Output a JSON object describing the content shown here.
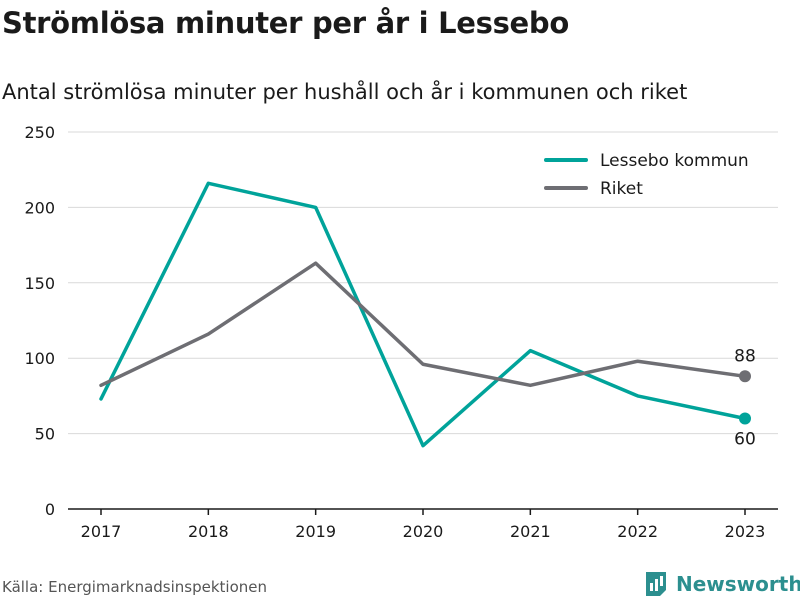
{
  "title": "Strömlösa minuter per år i Lessebo",
  "subtitle": "Antal strömlösa minuter per hushåll och år i kommunen och riket",
  "source": "Källa: Energimarknadsinspektionen",
  "brand": {
    "name": "Newsworthy",
    "icon": "newsworthy-logo-icon",
    "color": "#2c8f8f"
  },
  "chart_data": {
    "type": "line",
    "categories": [
      "2017",
      "2018",
      "2019",
      "2020",
      "2021",
      "2022",
      "2023"
    ],
    "series": [
      {
        "name": "Lessebo kommun",
        "color": "#00a39a",
        "values": [
          73,
          216,
          200,
          42,
          105,
          75,
          60
        ],
        "end_label": "60"
      },
      {
        "name": "Riket",
        "color": "#6e6e73",
        "values": [
          82,
          116,
          163,
          96,
          82,
          98,
          88
        ],
        "end_label": "88"
      }
    ],
    "ylim": [
      0,
      250
    ],
    "yticks": [
      "0",
      "50",
      "100",
      "150",
      "200",
      "250"
    ],
    "xlabel": "",
    "ylabel": "",
    "grid": true,
    "legend_position": "top-right"
  }
}
